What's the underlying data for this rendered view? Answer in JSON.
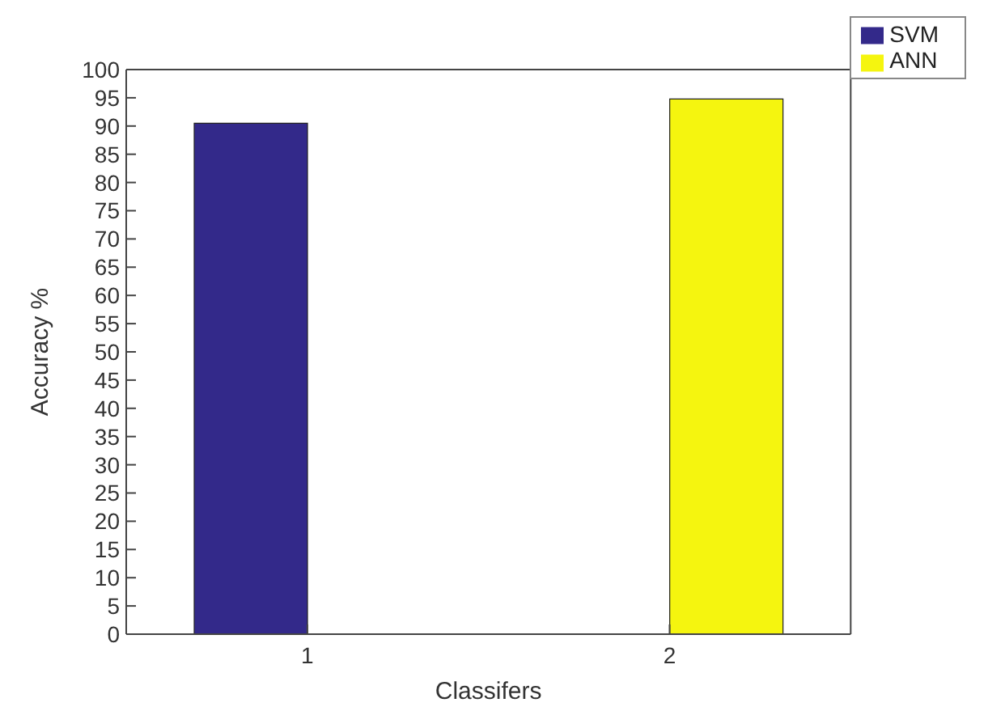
{
  "chart_data": {
    "type": "bar",
    "categories": [
      "1",
      "2"
    ],
    "xlabel": "Classifers",
    "ylabel": "Accuracy %",
    "series": [
      {
        "name": "SVM",
        "color": "#33298a",
        "values": [
          90.5,
          0
        ]
      },
      {
        "name": "ANN",
        "color": "#f5f50f",
        "values": [
          0,
          94.8
        ]
      }
    ],
    "ylim": [
      0,
      100
    ],
    "yticks": [
      0,
      5,
      10,
      15,
      20,
      25,
      30,
      35,
      40,
      45,
      50,
      55,
      60,
      65,
      70,
      75,
      80,
      85,
      90,
      95,
      100
    ],
    "legend": "top right",
    "grid": false
  }
}
